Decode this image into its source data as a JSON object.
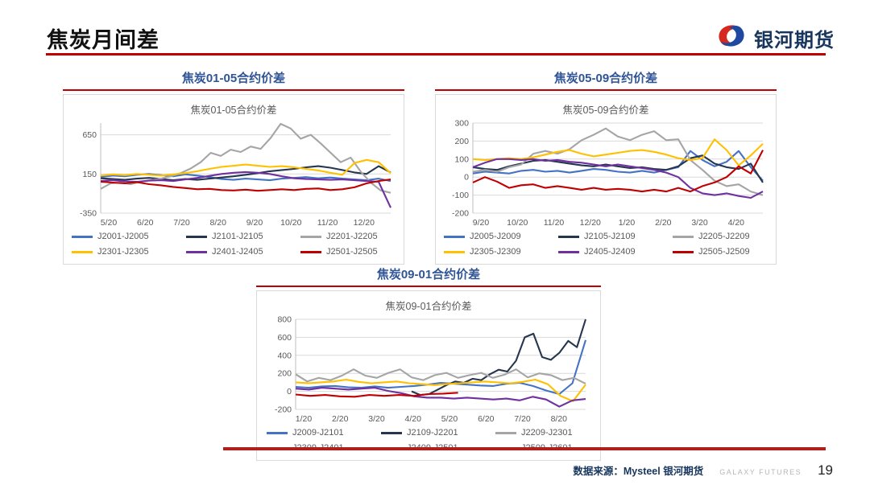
{
  "page": {
    "title": "焦炭月间差",
    "logo_text": "银河期货",
    "accent_red": "#C00000",
    "footer": {
      "source": "数据来源：Mysteel 银河期货",
      "brand": "GALAXY FUTURES",
      "page_number": "19"
    }
  },
  "chart_data": [
    {
      "type": "line",
      "header": "焦炭01-05合约价差",
      "title": "焦炭01-05合约价差",
      "x_labels": [
        "5/20",
        "6/20",
        "7/20",
        "8/20",
        "9/20",
        "10/20",
        "11/20",
        "12/20"
      ],
      "yticks": [
        650,
        150,
        -350
      ],
      "ylim": [
        -350,
        800
      ],
      "grid": true,
      "legend_position": "bottom",
      "series": [
        {
          "name": "J2001-J2005",
          "color": "#4472C4",
          "values": [
            110,
            130,
            120,
            140,
            150,
            135,
            120,
            145,
            130,
            110,
            85,
            75,
            90,
            80,
            70,
            90,
            100,
            110,
            95,
            105,
            90,
            80,
            70,
            90,
            60
          ]
        },
        {
          "name": "J2101-J2105",
          "color": "#26364F",
          "values": [
            95,
            85,
            75,
            90,
            100,
            85,
            70,
            85,
            75,
            90,
            105,
            120,
            140,
            160,
            185,
            200,
            215,
            235,
            250,
            230,
            200,
            170,
            150,
            250,
            170
          ]
        },
        {
          "name": "J2201-J2205",
          "color": "#A5A5A5",
          "values": [
            -40,
            30,
            40,
            20,
            50,
            70,
            90,
            120,
            160,
            220,
            300,
            420,
            380,
            460,
            430,
            500,
            470,
            610,
            790,
            730,
            600,
            650,
            540,
            420,
            300,
            360,
            180,
            40,
            -60,
            -90
          ]
        },
        {
          "name": "J2301-J2305",
          "color": "#FFC000",
          "values": [
            130,
            145,
            135,
            150,
            140,
            130,
            145,
            160,
            185,
            215,
            240,
            255,
            270,
            255,
            240,
            250,
            235,
            215,
            195,
            165,
            140,
            290,
            330,
            300,
            160
          ]
        },
        {
          "name": "J2401-J2405",
          "color": "#7030A0",
          "values": [
            60,
            70,
            55,
            50,
            65,
            70,
            60,
            80,
            100,
            125,
            150,
            165,
            175,
            165,
            150,
            120,
            95,
            85,
            80,
            75,
            80,
            70,
            60,
            50,
            -280
          ]
        },
        {
          "name": "J2501-J2505",
          "color": "#C00000",
          "values": [
            50,
            40,
            30,
            45,
            20,
            5,
            -15,
            -30,
            -45,
            -40,
            -55,
            -60,
            -50,
            -65,
            -55,
            -45,
            -55,
            -40,
            -35,
            -55,
            -45,
            -20,
            30,
            60,
            80
          ]
        }
      ]
    },
    {
      "type": "line",
      "header": "焦炭05-09合约价差",
      "title": "焦炭05-09合约价差",
      "x_labels": [
        "9/20",
        "10/20",
        "11/20",
        "12/20",
        "1/20",
        "2/20",
        "3/20",
        "4/20"
      ],
      "yticks": [
        300,
        200,
        100,
        0,
        -100,
        -200
      ],
      "ylim": [
        -200,
        300
      ],
      "grid": true,
      "legend_position": "bottom",
      "series": [
        {
          "name": "J2005-J2009",
          "color": "#4472C4",
          "values": [
            20,
            30,
            25,
            20,
            35,
            40,
            30,
            35,
            25,
            35,
            45,
            40,
            30,
            25,
            35,
            25,
            40,
            55,
            145,
            95,
            60,
            85,
            145,
            55,
            -20
          ]
        },
        {
          "name": "J2105-J2109",
          "color": "#26364F",
          "values": [
            55,
            45,
            40,
            60,
            75,
            90,
            95,
            85,
            75,
            65,
            60,
            70,
            60,
            50,
            55,
            45,
            40,
            60,
            105,
            120,
            75,
            55,
            45,
            75,
            -30
          ]
        },
        {
          "name": "J2205-J2209",
          "color": "#A5A5A5",
          "values": [
            30,
            40,
            30,
            55,
            70,
            130,
            145,
            130,
            155,
            205,
            235,
            270,
            225,
            205,
            235,
            255,
            205,
            210,
            95,
            40,
            -20,
            -50,
            -40,
            -80,
            -100
          ]
        },
        {
          "name": "J2305-J2309",
          "color": "#FFC000",
          "values": [
            100,
            95,
            100,
            105,
            100,
            110,
            125,
            140,
            150,
            130,
            115,
            125,
            135,
            145,
            150,
            140,
            125,
            105,
            95,
            105,
            210,
            150,
            65,
            120,
            185
          ]
        },
        {
          "name": "J2405-J2409",
          "color": "#7030A0",
          "values": [
            55,
            80,
            100,
            100,
            95,
            100,
            90,
            95,
            85,
            80,
            70,
            60,
            70,
            60,
            50,
            40,
            25,
            0,
            -60,
            -90,
            -100,
            -90,
            -105,
            -115,
            -80
          ]
        },
        {
          "name": "J2505-J2509",
          "color": "#C00000",
          "values": [
            -30,
            0,
            -25,
            -60,
            -45,
            -40,
            -60,
            -50,
            -60,
            -70,
            -60,
            -70,
            -65,
            -70,
            -80,
            -70,
            -80,
            -60,
            -80,
            -50,
            -30,
            0,
            60,
            20,
            150
          ]
        }
      ]
    },
    {
      "type": "line",
      "header": "焦炭09-01合约价差",
      "title": "焦炭09-01合约价差",
      "x_labels": [
        "1/20",
        "2/20",
        "3/20",
        "4/20",
        "5/20",
        "6/20",
        "7/20",
        "8/20"
      ],
      "yticks": [
        800,
        600,
        400,
        200,
        0,
        -200
      ],
      "ylim": [
        -200,
        800
      ],
      "grid": true,
      "legend_position": "bottom",
      "series": [
        {
          "name": "J2009-J2101",
          "color": "#4472C4",
          "values": [
            50,
            40,
            55,
            60,
            45,
            40,
            55,
            40,
            50,
            60,
            75,
            95,
            85,
            75,
            65,
            60,
            85,
            95,
            60,
            10,
            -30,
            90,
            570
          ]
        },
        {
          "name": "J2109-J2201",
          "color": "#26364F",
          "x_start": 0.4,
          "values": [
            0,
            -40,
            -30,
            20,
            70,
            110,
            95,
            140,
            125,
            190,
            240,
            220,
            340,
            600,
            640,
            380,
            350,
            430,
            560,
            490,
            800
          ]
        },
        {
          "name": "J2209-J2301",
          "color": "#A5A5A5",
          "values": [
            190,
            110,
            150,
            125,
            175,
            245,
            175,
            150,
            205,
            245,
            155,
            125,
            180,
            205,
            150,
            180,
            205,
            150,
            185,
            245,
            155,
            200,
            180,
            125,
            150,
            85
          ]
        },
        {
          "name": "J2309-J2401",
          "color": "#FFC000",
          "values": [
            100,
            90,
            100,
            110,
            130,
            105,
            90,
            100,
            110,
            90,
            80,
            70,
            80,
            90,
            100,
            110,
            100,
            90,
            105,
            130,
            80,
            -50,
            -110,
            75
          ]
        },
        {
          "name": "J2409-J2501",
          "color": "#7030A0",
          "values": [
            30,
            20,
            40,
            30,
            20,
            30,
            40,
            5,
            -20,
            -55,
            -70,
            -70,
            -80,
            -70,
            -80,
            -90,
            -80,
            -100,
            -60,
            -90,
            -170,
            -100,
            -85
          ]
        },
        {
          "name": "J2509-J2601",
          "color": "#C00000",
          "x_end": 0.56,
          "values": [
            -35,
            -50,
            -40,
            -55,
            -60,
            -40,
            -50,
            -40,
            -50,
            -30,
            -25,
            -15
          ]
        }
      ]
    }
  ]
}
